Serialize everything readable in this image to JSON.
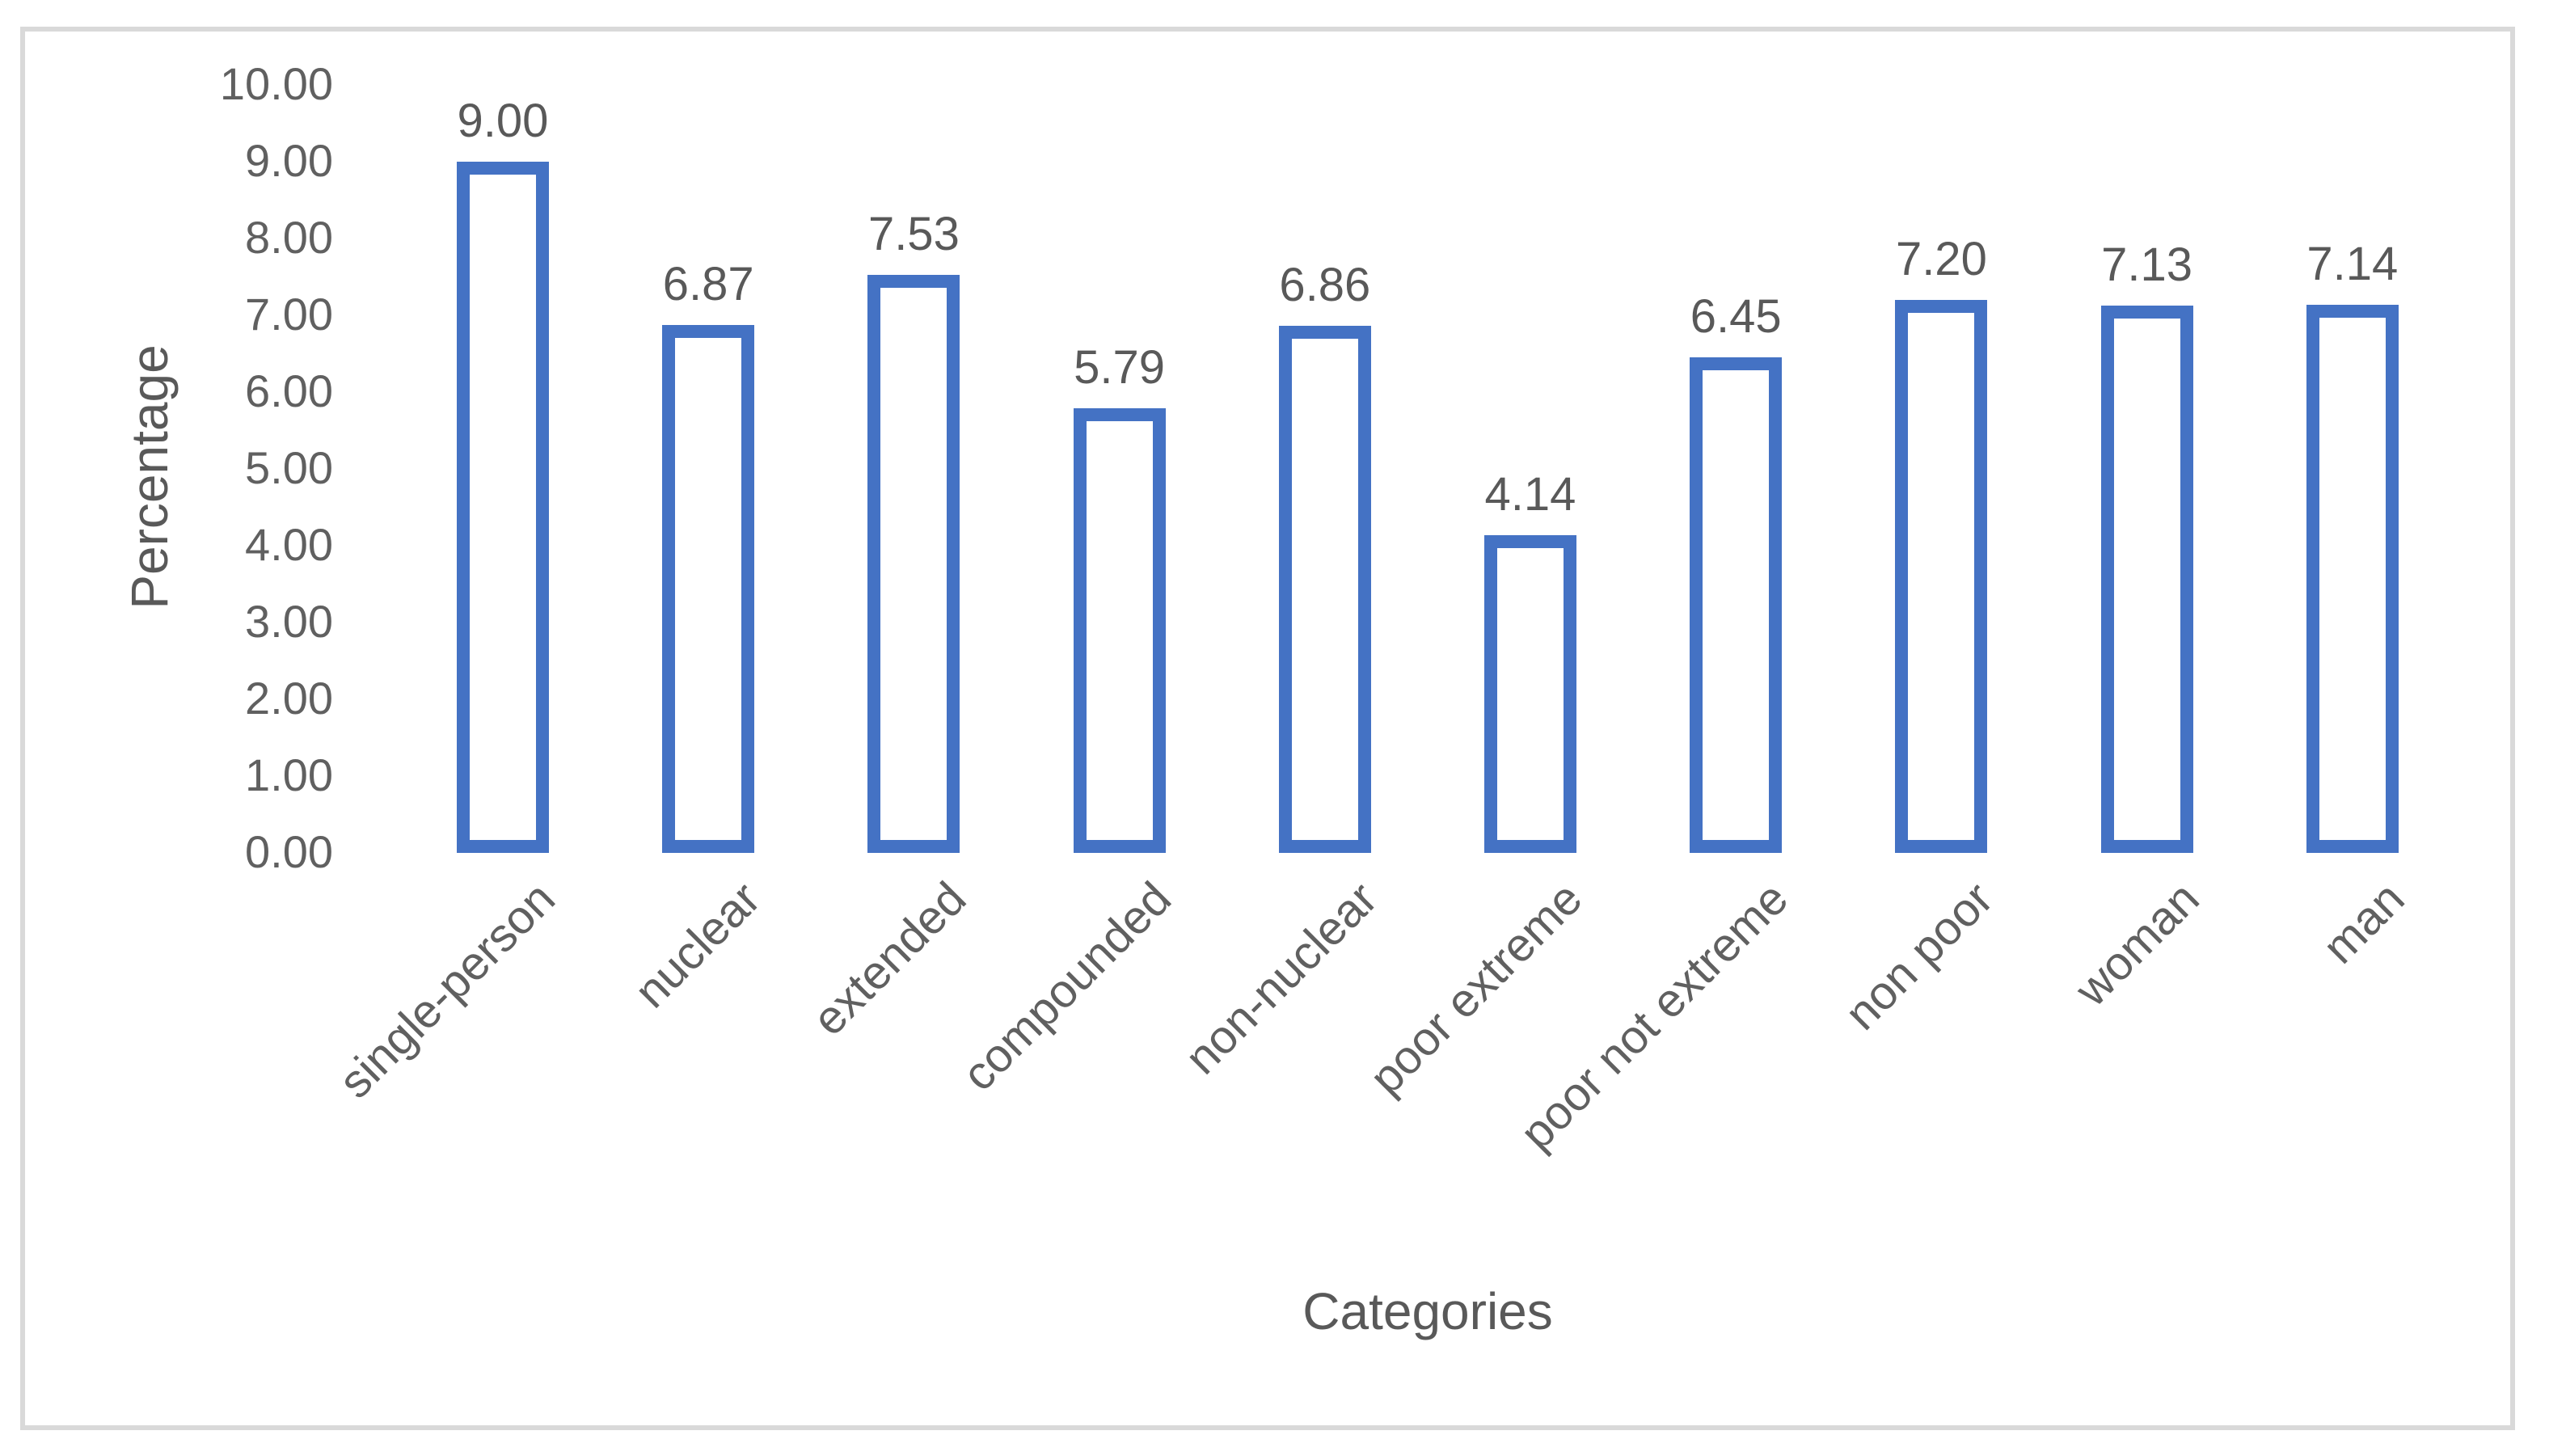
{
  "chart_data": {
    "type": "bar",
    "title": "",
    "categories": [
      "single-person",
      "nuclear",
      "extended",
      "compounded",
      "non-nuclear",
      "poor extreme",
      "poor not extreme",
      "non poor",
      "woman",
      "man"
    ],
    "values": [
      9.0,
      6.87,
      7.53,
      5.79,
      6.86,
      4.14,
      6.45,
      7.2,
      7.13,
      7.14
    ],
    "value_labels": [
      "9.00",
      "6.87",
      "7.53",
      "5.79",
      "6.86",
      "4.14",
      "6.45",
      "7.20",
      "7.13",
      "7.14"
    ],
    "xlabel": "Categories",
    "ylabel": "Percentage",
    "ylim": [
      0,
      10
    ],
    "y_ticks": [
      "10.00",
      "9.00",
      "8.00",
      "7.00",
      "6.00",
      "5.00",
      "4.00",
      "3.00",
      "2.00",
      "1.00",
      "0.00"
    ],
    "grid": "off",
    "legend": "none",
    "bar_style": "outlined, white fill",
    "colors": {
      "bar_border": "#4472C4",
      "bar_fill": "#FFFFFF",
      "frame_border": "#D9D9D9",
      "text": "#595959"
    }
  }
}
